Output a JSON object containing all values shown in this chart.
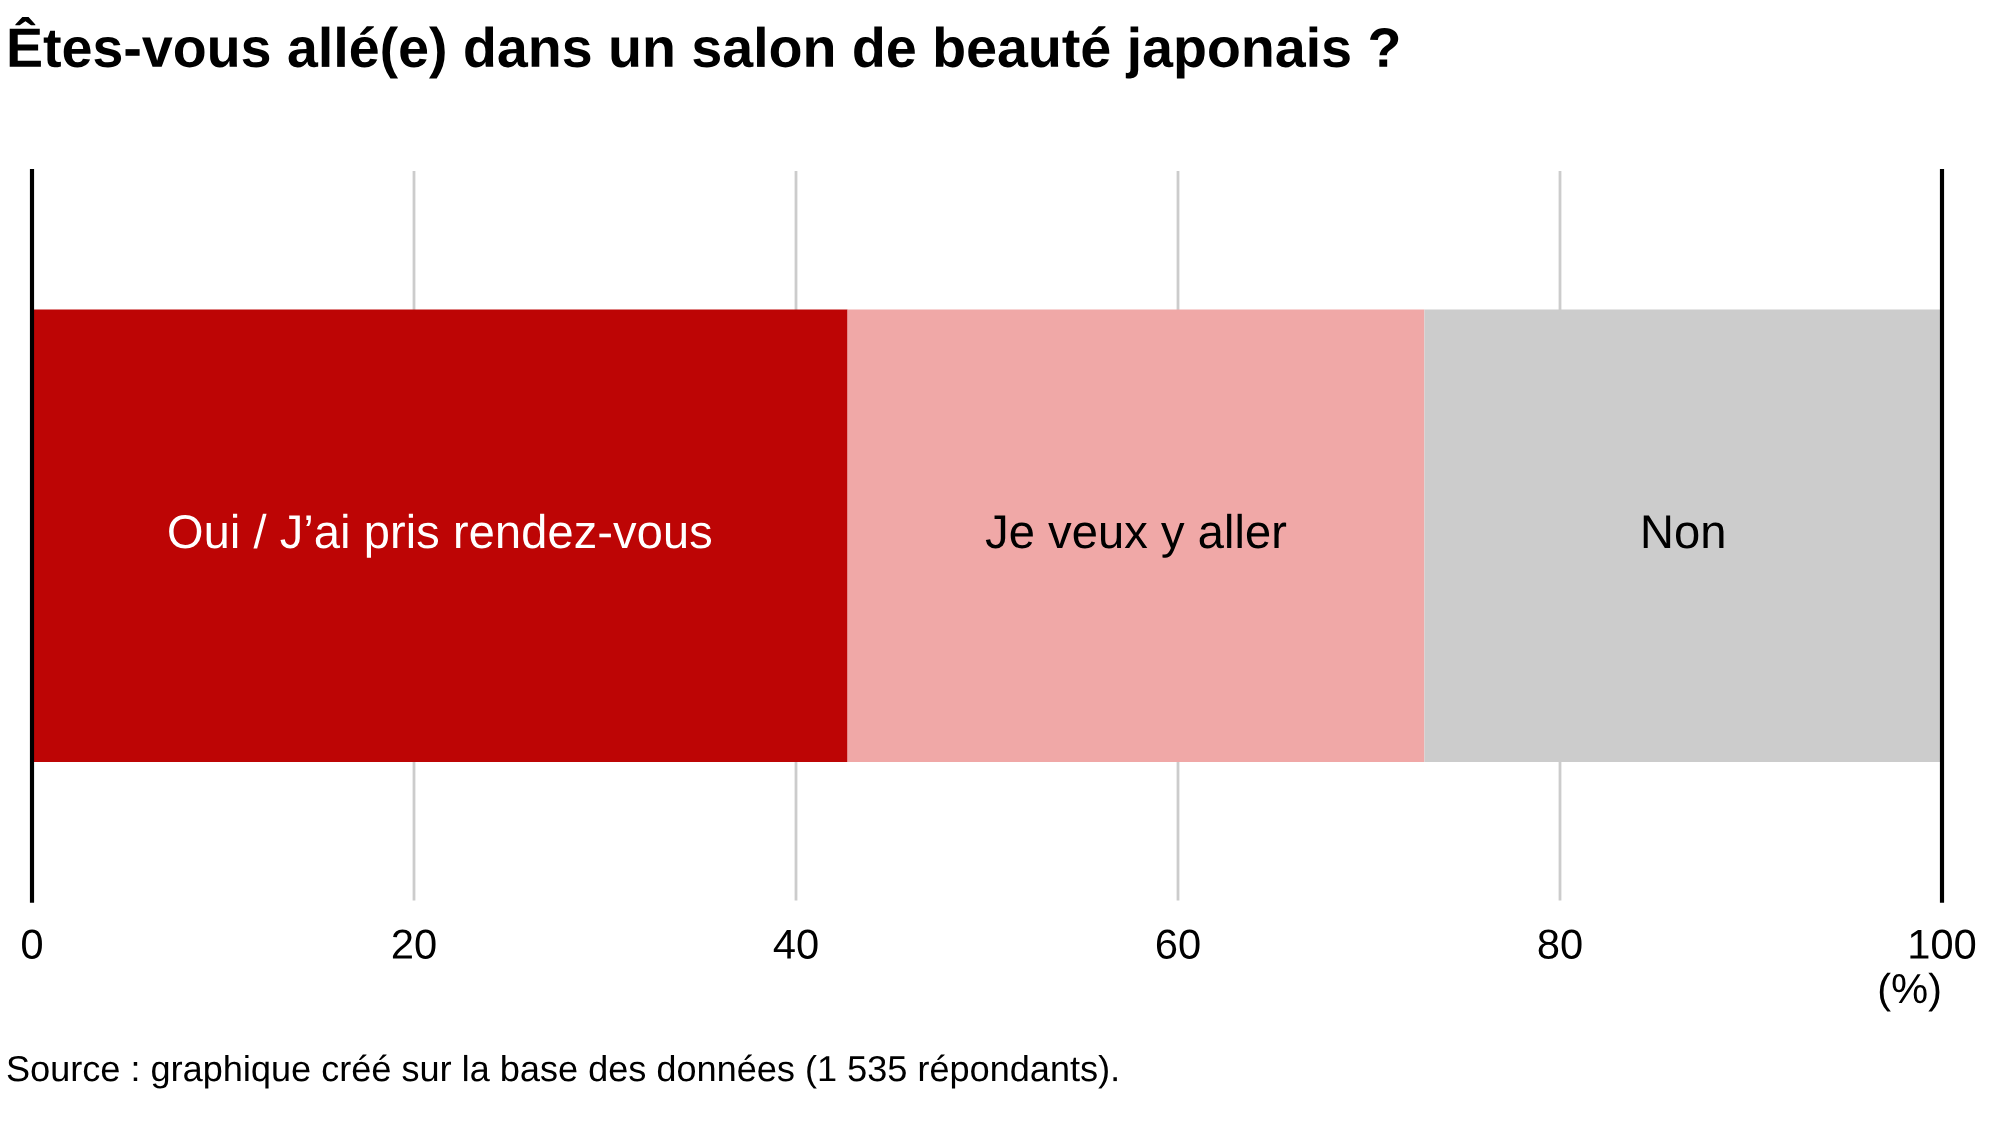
{
  "chart_data": {
    "type": "bar",
    "title": "Êtes-vous allé(e) dans un salon de beauté japonais ?",
    "orientation": "horizontal",
    "stacked": true,
    "categories": [
      null
    ],
    "series": [
      {
        "name": "Oui / J’ai pris rendez-vous",
        "color": "#bd0505",
        "values": [
          42.7
        ]
      },
      {
        "name": "Je veux y aller",
        "color": "#f0a8a7",
        "values": [
          30.2
        ]
      },
      {
        "name": "Non",
        "color": "#cccccc",
        "values": [
          27.1
        ]
      }
    ],
    "xlim": [
      0,
      100
    ],
    "xticks": [
      0,
      20,
      40,
      60,
      80,
      100
    ],
    "xlabel": "(%)",
    "grid": "x",
    "legend": false,
    "annotations": [
      "Source : graphique créé sur la base des données (1 535 répondants)."
    ]
  }
}
